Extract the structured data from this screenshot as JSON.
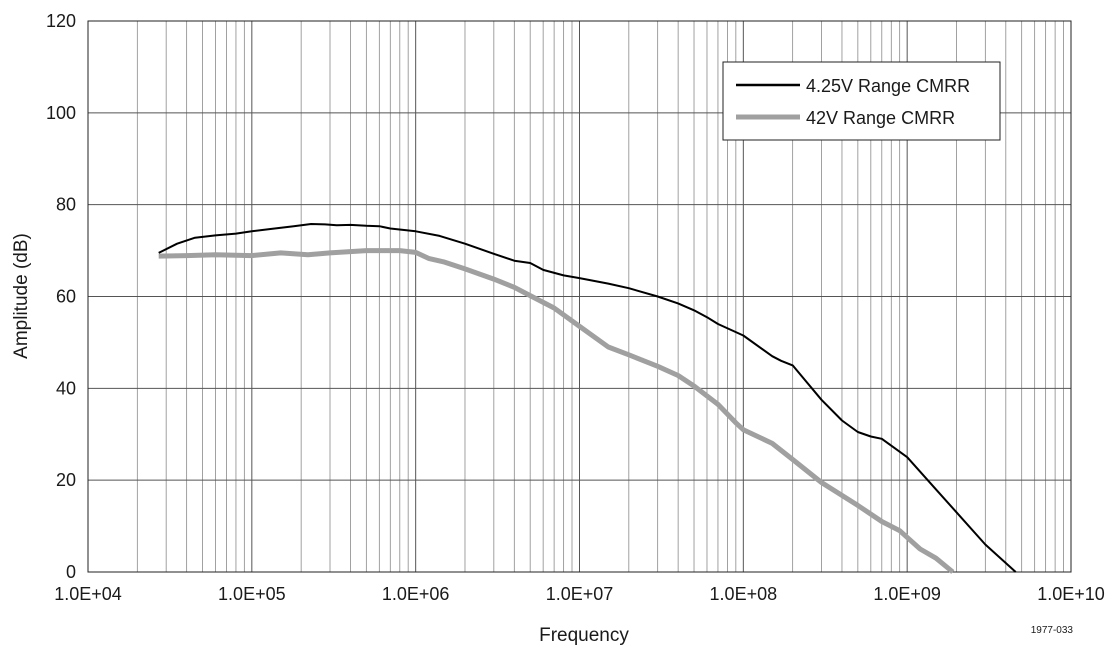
{
  "chart_data": {
    "type": "line",
    "xlabel": "Frequency",
    "ylabel": "Amplitude (dB)",
    "x_scale": "log",
    "xlim": [
      10000,
      10000000000
    ],
    "ylim": [
      0,
      120
    ],
    "x_tick_labels": [
      "1.0E+04",
      "1.0E+05",
      "1.0E+06",
      "1.0E+07",
      "1.0E+08",
      "1.0E+09",
      "1.0E+10"
    ],
    "y_tick_labels": [
      "0",
      "20",
      "40",
      "60",
      "80",
      "100",
      "120"
    ],
    "grid": true,
    "legend_position": "top-right",
    "series": [
      {
        "name": "4.25V Range CMRR",
        "color": "#000000",
        "x": [
          27000,
          35000,
          45000,
          60000,
          80000,
          100000,
          130000,
          180000,
          230000,
          280000,
          330000,
          400000,
          500000,
          600000,
          700000,
          1000000,
          1400000,
          2000000,
          3000000,
          4000000,
          5000000,
          6000000,
          8000000,
          10000000,
          15000000,
          20000000,
          30000000,
          40000000,
          50000000,
          60000000,
          70000000,
          100000000,
          150000000,
          170000000,
          200000000,
          300000000,
          400000000,
          500000000,
          600000000,
          700000000,
          1000000000,
          1500000000,
          2000000000,
          3000000000,
          4600000000
        ],
        "y": [
          69.5,
          71.5,
          72.8,
          73.3,
          73.7,
          74.2,
          74.7,
          75.3,
          75.8,
          75.7,
          75.5,
          75.6,
          75.4,
          75.3,
          74.8,
          74.2,
          73.2,
          71.5,
          69.3,
          67.8,
          67.3,
          65.8,
          64.6,
          64.0,
          62.8,
          61.8,
          60.0,
          58.5,
          57.0,
          55.5,
          54.0,
          51.5,
          47.0,
          46.0,
          45.0,
          37.5,
          33.0,
          30.5,
          29.5,
          29.0,
          25.0,
          18.0,
          13.0,
          6.0,
          0.0
        ]
      },
      {
        "name": "42V Range CMRR",
        "color": "#a0a0a0",
        "x": [
          27000,
          40000,
          60000,
          80000,
          100000,
          150000,
          220000,
          300000,
          500000,
          800000,
          1000000,
          1200000,
          1500000,
          2000000,
          3000000,
          4000000,
          5000000,
          7000000,
          10000000,
          15000000,
          20000000,
          30000000,
          40000000,
          50000000,
          70000000,
          90000000,
          100000000,
          150000000,
          200000000,
          300000000,
          500000000,
          700000000,
          900000000,
          1200000000,
          1500000000,
          1900000000
        ],
        "y": [
          68.8,
          68.9,
          69.1,
          69.0,
          68.9,
          69.5,
          69.1,
          69.5,
          70.0,
          70.0,
          69.6,
          68.3,
          67.5,
          66.0,
          63.8,
          62.0,
          60.2,
          57.5,
          53.5,
          49.0,
          47.3,
          44.8,
          42.8,
          40.5,
          36.5,
          32.5,
          31.0,
          28.0,
          24.5,
          19.5,
          14.5,
          11.0,
          9.0,
          5.0,
          3.0,
          0.0
        ]
      }
    ]
  },
  "figure_id": "1977-033"
}
